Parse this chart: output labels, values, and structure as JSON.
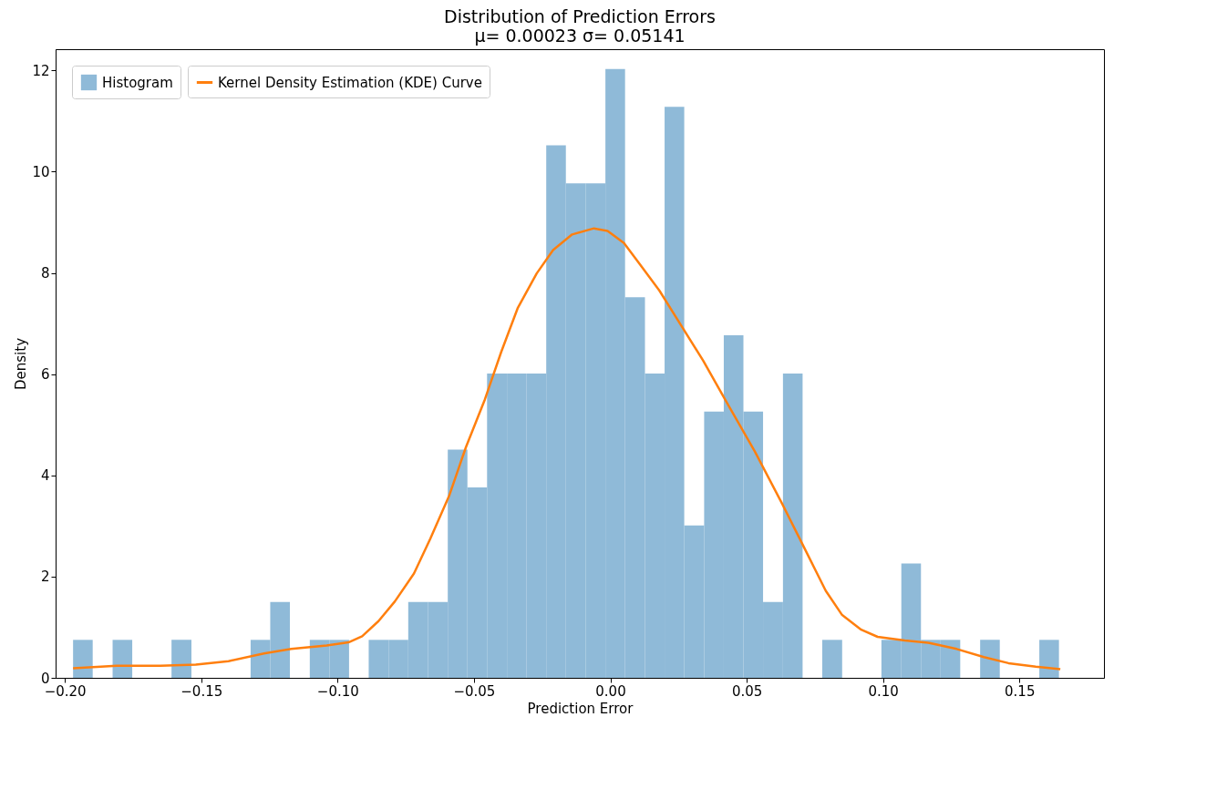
{
  "chart_data": {
    "type": "histogram",
    "title": "Distribution of Prediction Errors",
    "subtitle": "μ= 0.00023    σ= 0.05141",
    "xlabel": "Prediction Error",
    "ylabel": "Density",
    "bins": [
      -0.197,
      -0.1898,
      -0.1825,
      -0.1753,
      -0.1681,
      -0.1609,
      -0.1536,
      -0.1464,
      -0.1392,
      -0.1319,
      -0.1247,
      -0.1175,
      -0.1102,
      -0.103,
      -0.0958,
      -0.0886,
      -0.0813,
      -0.0741,
      -0.0669,
      -0.0596,
      -0.0524,
      -0.0452,
      -0.0379,
      -0.0307,
      -0.0235,
      -0.0163,
      -0.009,
      -0.0018,
      0.0054,
      0.0127,
      0.0199,
      0.0271,
      0.0344,
      0.0416,
      0.0488,
      0.056,
      0.0633,
      0.0705,
      0.0777,
      0.085,
      0.0922,
      0.0994,
      0.1067,
      0.1139,
      0.1211,
      0.1283,
      0.1356,
      0.1428,
      0.15,
      0.1573,
      0.1645
    ],
    "series": [
      {
        "name": "Histogram",
        "color": "#8fbad8",
        "values": [
          0.75,
          0,
          0.75,
          0,
          0,
          0.75,
          0,
          0,
          0,
          0.75,
          1.5,
          0,
          0.75,
          0.75,
          0,
          0.75,
          0.75,
          1.5,
          1.5,
          4.51,
          3.76,
          6.01,
          6.01,
          6.01,
          10.52,
          9.77,
          9.77,
          12.03,
          7.52,
          6.01,
          11.28,
          3.01,
          5.26,
          6.77,
          5.26,
          1.5,
          6.01,
          0,
          0.75,
          0,
          0,
          0.75,
          2.26,
          0.75,
          0.75,
          0,
          0.75,
          0,
          0,
          0.75
        ]
      },
      {
        "name": "Kernel Density Estimation (KDE) Curve",
        "type": "line",
        "color": "#ff7f0e",
        "x": [
          -0.197,
          -0.181,
          -0.165,
          -0.152,
          -0.14,
          -0.127,
          -0.117,
          -0.104,
          -0.096,
          -0.091,
          -0.085,
          -0.079,
          -0.072,
          -0.066,
          -0.059,
          -0.053,
          -0.046,
          -0.04,
          -0.034,
          -0.027,
          -0.021,
          -0.014,
          -0.006,
          -0.001,
          0.005,
          0.011,
          0.018,
          0.026,
          0.034,
          0.043,
          0.053,
          0.063,
          0.071,
          0.079,
          0.085,
          0.092,
          0.098,
          0.108,
          0.117,
          0.127,
          0.137,
          0.146,
          0.156,
          0.165
        ],
        "values": [
          0.19,
          0.24,
          0.24,
          0.26,
          0.33,
          0.48,
          0.57,
          0.64,
          0.7,
          0.82,
          1.12,
          1.51,
          2.06,
          2.75,
          3.61,
          4.55,
          5.5,
          6.44,
          7.3,
          7.99,
          8.45,
          8.76,
          8.88,
          8.83,
          8.59,
          8.16,
          7.65,
          6.96,
          6.27,
          5.41,
          4.47,
          3.44,
          2.58,
          1.72,
          1.24,
          0.95,
          0.81,
          0.74,
          0.69,
          0.57,
          0.41,
          0.29,
          0.22,
          0.17
        ]
      }
    ],
    "xlim": [
      -0.2034,
      0.181
    ],
    "ylim": [
      0,
      12.42
    ],
    "xticks": [
      {
        "value": -0.2,
        "label": "−0.20"
      },
      {
        "value": -0.15,
        "label": "−0.15"
      },
      {
        "value": -0.1,
        "label": "−0.10"
      },
      {
        "value": -0.05,
        "label": "−0.05"
      },
      {
        "value": 0,
        "label": "0.00"
      },
      {
        "value": 0.05,
        "label": "0.05"
      },
      {
        "value": 0.1,
        "label": "0.10"
      },
      {
        "value": 0.15,
        "label": "0.15"
      }
    ],
    "yticks": [
      0,
      2,
      4,
      6,
      8,
      10,
      12
    ],
    "legend": "top left",
    "grid": false
  }
}
